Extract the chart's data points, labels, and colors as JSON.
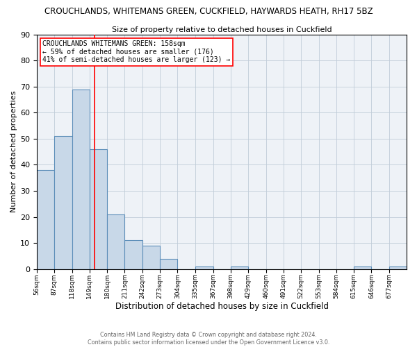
{
  "title_main": "CROUCHLANDS, WHITEMANS GREEN, CUCKFIELD, HAYWARDS HEATH, RH17 5BZ",
  "title_sub": "Size of property relative to detached houses in Cuckfield",
  "xlabel": "Distribution of detached houses by size in Cuckfield",
  "ylabel": "Number of detached properties",
  "bin_labels": [
    "56sqm",
    "87sqm",
    "118sqm",
    "149sqm",
    "180sqm",
    "211sqm",
    "242sqm",
    "273sqm",
    "304sqm",
    "335sqm",
    "367sqm",
    "398sqm",
    "429sqm",
    "460sqm",
    "491sqm",
    "522sqm",
    "553sqm",
    "584sqm",
    "615sqm",
    "646sqm",
    "677sqm"
  ],
  "bin_edges": [
    56,
    87,
    118,
    149,
    180,
    211,
    242,
    273,
    304,
    335,
    367,
    398,
    429,
    460,
    491,
    522,
    553,
    584,
    615,
    646,
    677,
    708
  ],
  "values": [
    38,
    51,
    69,
    46,
    21,
    11,
    9,
    4,
    0,
    1,
    0,
    1,
    0,
    0,
    0,
    0,
    0,
    0,
    1,
    0,
    1
  ],
  "bar_color": "#c8d8e8",
  "bar_edge_color": "#5b8db8",
  "vline_x": 158,
  "vline_color": "red",
  "annotation_line1": "CROUCHLANDS WHITEMANS GREEN: 158sqm",
  "annotation_line2": "← 59% of detached houses are smaller (176)",
  "annotation_line3": "41% of semi-detached houses are larger (123) →",
  "annotation_box_color": "red",
  "ylim": [
    0,
    90
  ],
  "yticks": [
    0,
    10,
    20,
    30,
    40,
    50,
    60,
    70,
    80,
    90
  ],
  "footer_line1": "Contains HM Land Registry data © Crown copyright and database right 2024.",
  "footer_line2": "Contains public sector information licensed under the Open Government Licence v3.0.",
  "bg_color": "#eef2f7",
  "grid_color": "#c0ccd8"
}
